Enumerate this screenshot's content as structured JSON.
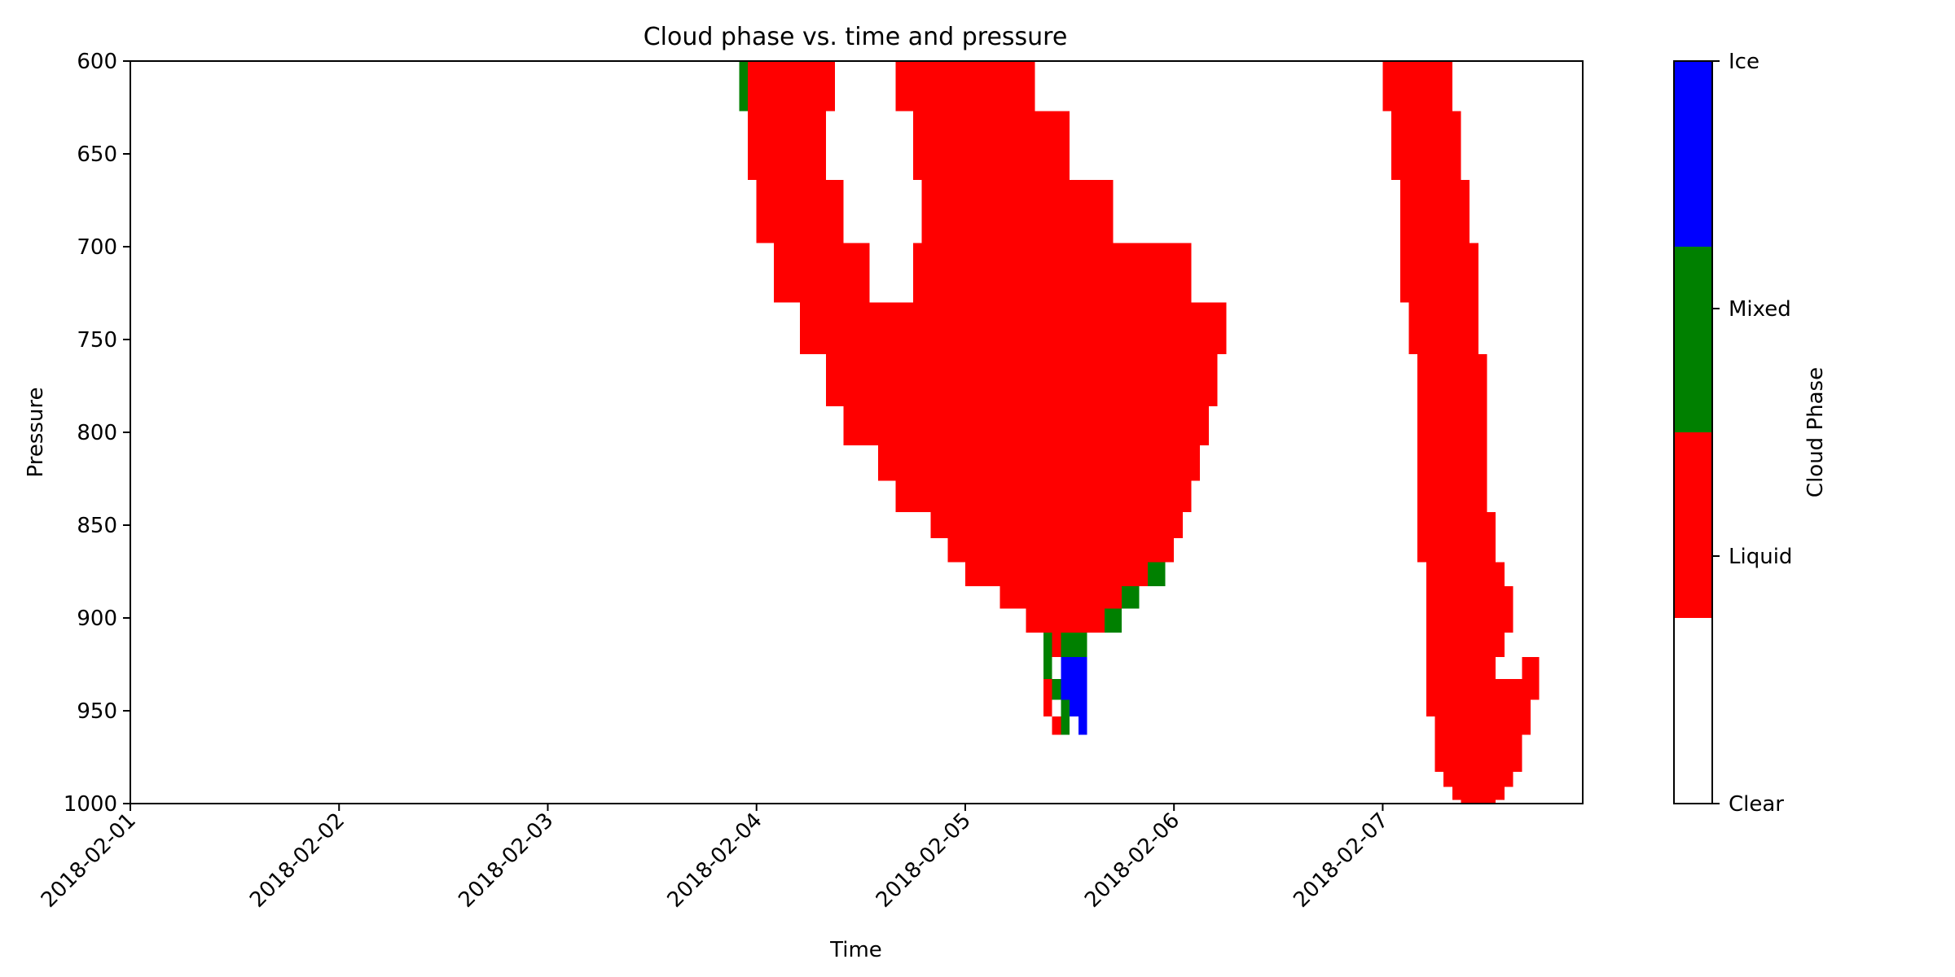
{
  "chart_data": {
    "type": "heatmap",
    "title": "Cloud phase vs. time and pressure",
    "xlabel": "Time",
    "ylabel": "Pressure",
    "x_ticks": [
      "2018-02-01",
      "2018-02-02",
      "2018-02-03",
      "2018-02-04",
      "2018-02-05",
      "2018-02-06",
      "2018-02-07"
    ],
    "xlim": [
      "2018-02-01T00:00",
      "2018-02-07T23:00"
    ],
    "y_ticks": [
      600,
      650,
      700,
      750,
      800,
      850,
      900,
      950,
      1000
    ],
    "ylim": [
      1000,
      600
    ],
    "y_inverted": true,
    "colorbar": {
      "label": "Cloud Phase",
      "categories": [
        "Clear",
        "Liquid",
        "Mixed",
        "Ice"
      ],
      "colors": [
        "#ffffff",
        "#ff0000",
        "#008000",
        "#0000ff"
      ],
      "tick_labels": [
        "Clear",
        "Liquid",
        "Mixed",
        "Ice"
      ]
    },
    "regions": [
      {
        "phase": "Liquid",
        "time_start": "2018-02-03T23:00",
        "time_end": "2018-02-04T09:00",
        "pressure_top": 600,
        "pressure_bottom": 627
      },
      {
        "phase": "Mixed",
        "time_start": "2018-02-03T22:00",
        "time_end": "2018-02-03T23:00",
        "pressure_top": 600,
        "pressure_bottom": 627
      },
      {
        "phase": "Liquid",
        "time_start": "2018-02-03T23:00",
        "time_end": "2018-02-04T08:00",
        "pressure_top": 627,
        "pressure_bottom": 664
      },
      {
        "phase": "Liquid",
        "time_start": "2018-02-04T00:00",
        "time_end": "2018-02-04T10:00",
        "pressure_top": 664,
        "pressure_bottom": 698
      },
      {
        "phase": "Liquid",
        "time_start": "2018-02-04T02:00",
        "time_end": "2018-02-04T13:00",
        "pressure_top": 698,
        "pressure_bottom": 730
      },
      {
        "phase": "Liquid",
        "time_start": "2018-02-04T16:00",
        "time_end": "2018-02-05T08:00",
        "pressure_top": 600,
        "pressure_bottom": 627
      },
      {
        "phase": "Liquid",
        "time_start": "2018-02-04T18:00",
        "time_end": "2018-02-05T12:00",
        "pressure_top": 627,
        "pressure_bottom": 664
      },
      {
        "phase": "Liquid",
        "time_start": "2018-02-04T19:00",
        "time_end": "2018-02-05T17:00",
        "pressure_top": 664,
        "pressure_bottom": 698
      },
      {
        "phase": "Liquid",
        "time_start": "2018-02-04T18:00",
        "time_end": "2018-02-06T02:00",
        "pressure_top": 698,
        "pressure_bottom": 730
      },
      {
        "phase": "Liquid",
        "time_start": "2018-02-04T05:00",
        "time_end": "2018-02-06T06:00",
        "pressure_top": 730,
        "pressure_bottom": 758
      },
      {
        "phase": "Liquid",
        "time_start": "2018-02-04T08:00",
        "time_end": "2018-02-06T05:00",
        "pressure_top": 758,
        "pressure_bottom": 786
      },
      {
        "phase": "Liquid",
        "time_start": "2018-02-04T10:00",
        "time_end": "2018-02-06T04:00",
        "pressure_top": 786,
        "pressure_bottom": 807
      },
      {
        "phase": "Liquid",
        "time_start": "2018-02-04T14:00",
        "time_end": "2018-02-06T03:00",
        "pressure_top": 807,
        "pressure_bottom": 826
      },
      {
        "phase": "Liquid",
        "time_start": "2018-02-04T16:00",
        "time_end": "2018-02-06T02:00",
        "pressure_top": 826,
        "pressure_bottom": 843
      },
      {
        "phase": "Liquid",
        "time_start": "2018-02-04T20:00",
        "time_end": "2018-02-06T01:00",
        "pressure_top": 843,
        "pressure_bottom": 857
      },
      {
        "phase": "Liquid",
        "time_start": "2018-02-04T22:00",
        "time_end": "2018-02-06T00:00",
        "pressure_top": 857,
        "pressure_bottom": 870
      },
      {
        "phase": "Liquid",
        "time_start": "2018-02-05T00:00",
        "time_end": "2018-02-05T21:00",
        "pressure_top": 870,
        "pressure_bottom": 883
      },
      {
        "phase": "Mixed",
        "time_start": "2018-02-05T21:00",
        "time_end": "2018-02-05T23:00",
        "pressure_top": 870,
        "pressure_bottom": 883
      },
      {
        "phase": "Liquid",
        "time_start": "2018-02-05T04:00",
        "time_end": "2018-02-05T18:00",
        "pressure_top": 883,
        "pressure_bottom": 895
      },
      {
        "phase": "Mixed",
        "time_start": "2018-02-05T18:00",
        "time_end": "2018-02-05T20:00",
        "pressure_top": 883,
        "pressure_bottom": 895
      },
      {
        "phase": "Liquid",
        "time_start": "2018-02-05T07:00",
        "time_end": "2018-02-05T16:00",
        "pressure_top": 895,
        "pressure_bottom": 908
      },
      {
        "phase": "Mixed",
        "time_start": "2018-02-05T16:00",
        "time_end": "2018-02-05T18:00",
        "pressure_top": 895,
        "pressure_bottom": 908
      },
      {
        "phase": "Liquid",
        "time_start": "2018-02-05T10:00",
        "time_end": "2018-02-05T11:00",
        "pressure_top": 908,
        "pressure_bottom": 921
      },
      {
        "phase": "Mixed",
        "time_start": "2018-02-05T11:00",
        "time_end": "2018-02-05T14:00",
        "pressure_top": 908,
        "pressure_bottom": 921
      },
      {
        "phase": "Mixed",
        "time_start": "2018-02-05T09:00",
        "time_end": "2018-02-05T10:00",
        "pressure_top": 908,
        "pressure_bottom": 933
      },
      {
        "phase": "Ice",
        "time_start": "2018-02-05T11:00",
        "time_end": "2018-02-05T14:00",
        "pressure_top": 921,
        "pressure_bottom": 953
      },
      {
        "phase": "Liquid",
        "time_start": "2018-02-05T09:00",
        "time_end": "2018-02-05T10:00",
        "pressure_top": 933,
        "pressure_bottom": 953
      },
      {
        "phase": "Mixed",
        "time_start": "2018-02-05T10:00",
        "time_end": "2018-02-05T11:00",
        "pressure_top": 933,
        "pressure_bottom": 944
      },
      {
        "phase": "Mixed",
        "time_start": "2018-02-05T11:00",
        "time_end": "2018-02-05T12:00",
        "pressure_top": 944,
        "pressure_bottom": 963
      },
      {
        "phase": "Liquid",
        "time_start": "2018-02-05T10:00",
        "time_end": "2018-02-05T11:00",
        "pressure_top": 953,
        "pressure_bottom": 963
      },
      {
        "phase": "Ice",
        "time_start": "2018-02-05T13:00",
        "time_end": "2018-02-05T14:00",
        "pressure_top": 953,
        "pressure_bottom": 963
      },
      {
        "phase": "Liquid",
        "time_start": "2018-02-07T00:00",
        "time_end": "2018-02-07T08:00",
        "pressure_top": 600,
        "pressure_bottom": 627
      },
      {
        "phase": "Liquid",
        "time_start": "2018-02-07T01:00",
        "time_end": "2018-02-07T09:00",
        "pressure_top": 627,
        "pressure_bottom": 664
      },
      {
        "phase": "Liquid",
        "time_start": "2018-02-07T02:00",
        "time_end": "2018-02-07T10:00",
        "pressure_top": 664,
        "pressure_bottom": 698
      },
      {
        "phase": "Liquid",
        "time_start": "2018-02-07T02:00",
        "time_end": "2018-02-07T11:00",
        "pressure_top": 698,
        "pressure_bottom": 730
      },
      {
        "phase": "Liquid",
        "time_start": "2018-02-07T03:00",
        "time_end": "2018-02-07T11:00",
        "pressure_top": 730,
        "pressure_bottom": 758
      },
      {
        "phase": "Liquid",
        "time_start": "2018-02-07T04:00",
        "time_end": "2018-02-07T12:00",
        "pressure_top": 758,
        "pressure_bottom": 786
      },
      {
        "phase": "Liquid",
        "time_start": "2018-02-07T04:00",
        "time_end": "2018-02-07T12:00",
        "pressure_top": 786,
        "pressure_bottom": 807
      },
      {
        "phase": "Liquid",
        "time_start": "2018-02-07T04:00",
        "time_end": "2018-02-07T12:00",
        "pressure_top": 807,
        "pressure_bottom": 843
      },
      {
        "phase": "Liquid",
        "time_start": "2018-02-07T04:00",
        "time_end": "2018-02-07T13:00",
        "pressure_top": 843,
        "pressure_bottom": 870
      },
      {
        "phase": "Liquid",
        "time_start": "2018-02-07T05:00",
        "time_end": "2018-02-07T14:00",
        "pressure_top": 870,
        "pressure_bottom": 883
      },
      {
        "phase": "Liquid",
        "time_start": "2018-02-07T05:00",
        "time_end": "2018-02-07T15:00",
        "pressure_top": 883,
        "pressure_bottom": 908
      },
      {
        "phase": "Liquid",
        "time_start": "2018-02-07T05:00",
        "time_end": "2018-02-07T14:00",
        "pressure_top": 908,
        "pressure_bottom": 921
      },
      {
        "phase": "Liquid",
        "time_start": "2018-02-07T05:00",
        "time_end": "2018-02-07T13:00",
        "pressure_top": 921,
        "pressure_bottom": 933
      },
      {
        "phase": "Liquid",
        "time_start": "2018-02-07T16:00",
        "time_end": "2018-02-07T18:00",
        "pressure_top": 921,
        "pressure_bottom": 933
      },
      {
        "phase": "Liquid",
        "time_start": "2018-02-07T05:00",
        "time_end": "2018-02-07T18:00",
        "pressure_top": 933,
        "pressure_bottom": 944
      },
      {
        "phase": "Liquid",
        "time_start": "2018-02-07T05:00",
        "time_end": "2018-02-07T17:00",
        "pressure_top": 944,
        "pressure_bottom": 953
      },
      {
        "phase": "Liquid",
        "time_start": "2018-02-07T06:00",
        "time_end": "2018-02-07T17:00",
        "pressure_top": 953,
        "pressure_bottom": 963
      },
      {
        "phase": "Liquid",
        "time_start": "2018-02-07T06:00",
        "time_end": "2018-02-07T16:00",
        "pressure_top": 963,
        "pressure_bottom": 973
      },
      {
        "phase": "Liquid",
        "time_start": "2018-02-07T06:00",
        "time_end": "2018-02-07T16:00",
        "pressure_top": 973,
        "pressure_bottom": 983
      },
      {
        "phase": "Liquid",
        "time_start": "2018-02-07T07:00",
        "time_end": "2018-02-07T15:00",
        "pressure_top": 983,
        "pressure_bottom": 991
      },
      {
        "phase": "Liquid",
        "time_start": "2018-02-07T08:00",
        "time_end": "2018-02-07T14:00",
        "pressure_top": 991,
        "pressure_bottom": 998
      },
      {
        "phase": "Liquid",
        "time_start": "2018-02-07T09:00",
        "time_end": "2018-02-07T13:00",
        "pressure_top": 998,
        "pressure_bottom": 1000
      }
    ]
  }
}
